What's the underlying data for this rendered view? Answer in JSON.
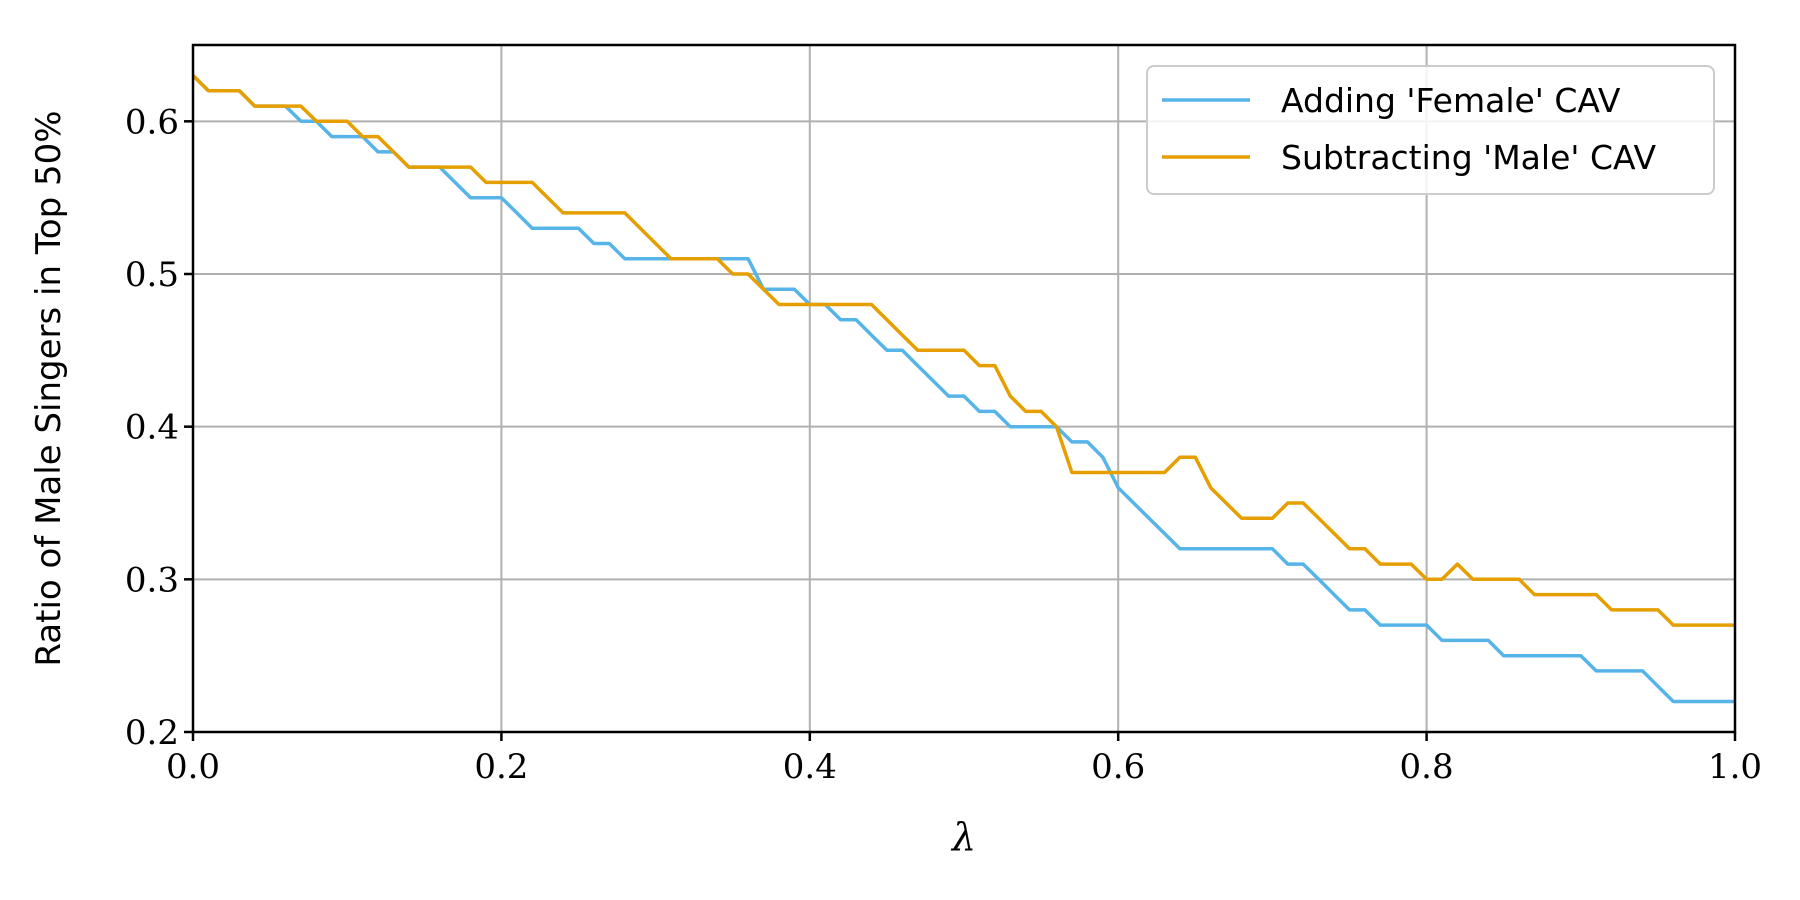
{
  "chart_data": {
    "type": "line",
    "title": "",
    "xlabel": "λ",
    "ylabel": "Ratio of Male Singers in Top 50%",
    "xlim": [
      0.0,
      1.0
    ],
    "ylim": [
      0.2,
      0.65
    ],
    "xticks": [
      0.0,
      0.2,
      0.4,
      0.6,
      0.8,
      1.0
    ],
    "xtick_labels": [
      "0.0",
      "0.2",
      "0.4",
      "0.6",
      "0.8",
      "1.0"
    ],
    "yticks": [
      0.2,
      0.3,
      0.4,
      0.5,
      0.6
    ],
    "ytick_labels": [
      "0.2",
      "0.3",
      "0.4",
      "0.5",
      "0.6"
    ],
    "grid": true,
    "legend_position": "top-right",
    "x": [
      0.0,
      0.01,
      0.02,
      0.03,
      0.04,
      0.05,
      0.06,
      0.07,
      0.08,
      0.09,
      0.1,
      0.11,
      0.12,
      0.13,
      0.14,
      0.15,
      0.16,
      0.17,
      0.18,
      0.19,
      0.2,
      0.21,
      0.22,
      0.23,
      0.24,
      0.25,
      0.26,
      0.27,
      0.28,
      0.29,
      0.3,
      0.31,
      0.32,
      0.33,
      0.34,
      0.35,
      0.36,
      0.37,
      0.38,
      0.39,
      0.4,
      0.41,
      0.42,
      0.43,
      0.44,
      0.45,
      0.46,
      0.47,
      0.48,
      0.49,
      0.5,
      0.51,
      0.52,
      0.53,
      0.54,
      0.55,
      0.56,
      0.57,
      0.58,
      0.59,
      0.6,
      0.61,
      0.62,
      0.63,
      0.64,
      0.65,
      0.66,
      0.67,
      0.68,
      0.69,
      0.7,
      0.71,
      0.72,
      0.73,
      0.74,
      0.75,
      0.76,
      0.77,
      0.78,
      0.79,
      0.8,
      0.81,
      0.82,
      0.83,
      0.84,
      0.85,
      0.86,
      0.87,
      0.88,
      0.89,
      0.9,
      0.91,
      0.92,
      0.93,
      0.94,
      0.95,
      0.96,
      0.97,
      0.98,
      0.99,
      1.0
    ],
    "series": [
      {
        "name": "Adding 'Female' CAV",
        "color": "#56B4E9",
        "values": [
          0.63,
          0.62,
          0.62,
          0.62,
          0.61,
          0.61,
          0.61,
          0.6,
          0.6,
          0.59,
          0.59,
          0.59,
          0.58,
          0.58,
          0.57,
          0.57,
          0.57,
          0.56,
          0.55,
          0.55,
          0.55,
          0.54,
          0.53,
          0.53,
          0.53,
          0.53,
          0.52,
          0.52,
          0.51,
          0.51,
          0.51,
          0.51,
          0.51,
          0.51,
          0.51,
          0.51,
          0.51,
          0.49,
          0.49,
          0.49,
          0.48,
          0.48,
          0.47,
          0.47,
          0.46,
          0.45,
          0.45,
          0.44,
          0.43,
          0.42,
          0.42,
          0.41,
          0.41,
          0.4,
          0.4,
          0.4,
          0.4,
          0.39,
          0.39,
          0.38,
          0.36,
          0.35,
          0.34,
          0.33,
          0.32,
          0.32,
          0.32,
          0.32,
          0.32,
          0.32,
          0.32,
          0.31,
          0.31,
          0.3,
          0.29,
          0.28,
          0.28,
          0.27,
          0.27,
          0.27,
          0.27,
          0.26,
          0.26,
          0.26,
          0.26,
          0.25,
          0.25,
          0.25,
          0.25,
          0.25,
          0.25,
          0.24,
          0.24,
          0.24,
          0.24,
          0.23,
          0.22,
          0.22,
          0.22,
          0.22,
          0.22
        ]
      },
      {
        "name": "Subtracting 'Male' CAV",
        "color": "#E69F00",
        "values": [
          0.63,
          0.62,
          0.62,
          0.62,
          0.61,
          0.61,
          0.61,
          0.61,
          0.6,
          0.6,
          0.6,
          0.59,
          0.59,
          0.58,
          0.57,
          0.57,
          0.57,
          0.57,
          0.57,
          0.56,
          0.56,
          0.56,
          0.56,
          0.55,
          0.54,
          0.54,
          0.54,
          0.54,
          0.54,
          0.53,
          0.52,
          0.51,
          0.51,
          0.51,
          0.51,
          0.5,
          0.5,
          0.49,
          0.48,
          0.48,
          0.48,
          0.48,
          0.48,
          0.48,
          0.48,
          0.47,
          0.46,
          0.45,
          0.45,
          0.45,
          0.45,
          0.44,
          0.44,
          0.42,
          0.41,
          0.41,
          0.4,
          0.37,
          0.37,
          0.37,
          0.37,
          0.37,
          0.37,
          0.37,
          0.38,
          0.38,
          0.36,
          0.35,
          0.34,
          0.34,
          0.34,
          0.35,
          0.35,
          0.34,
          0.33,
          0.32,
          0.32,
          0.31,
          0.31,
          0.31,
          0.3,
          0.3,
          0.31,
          0.3,
          0.3,
          0.3,
          0.3,
          0.29,
          0.29,
          0.29,
          0.29,
          0.29,
          0.28,
          0.28,
          0.28,
          0.28,
          0.27,
          0.27,
          0.27,
          0.27,
          0.27
        ]
      }
    ]
  }
}
